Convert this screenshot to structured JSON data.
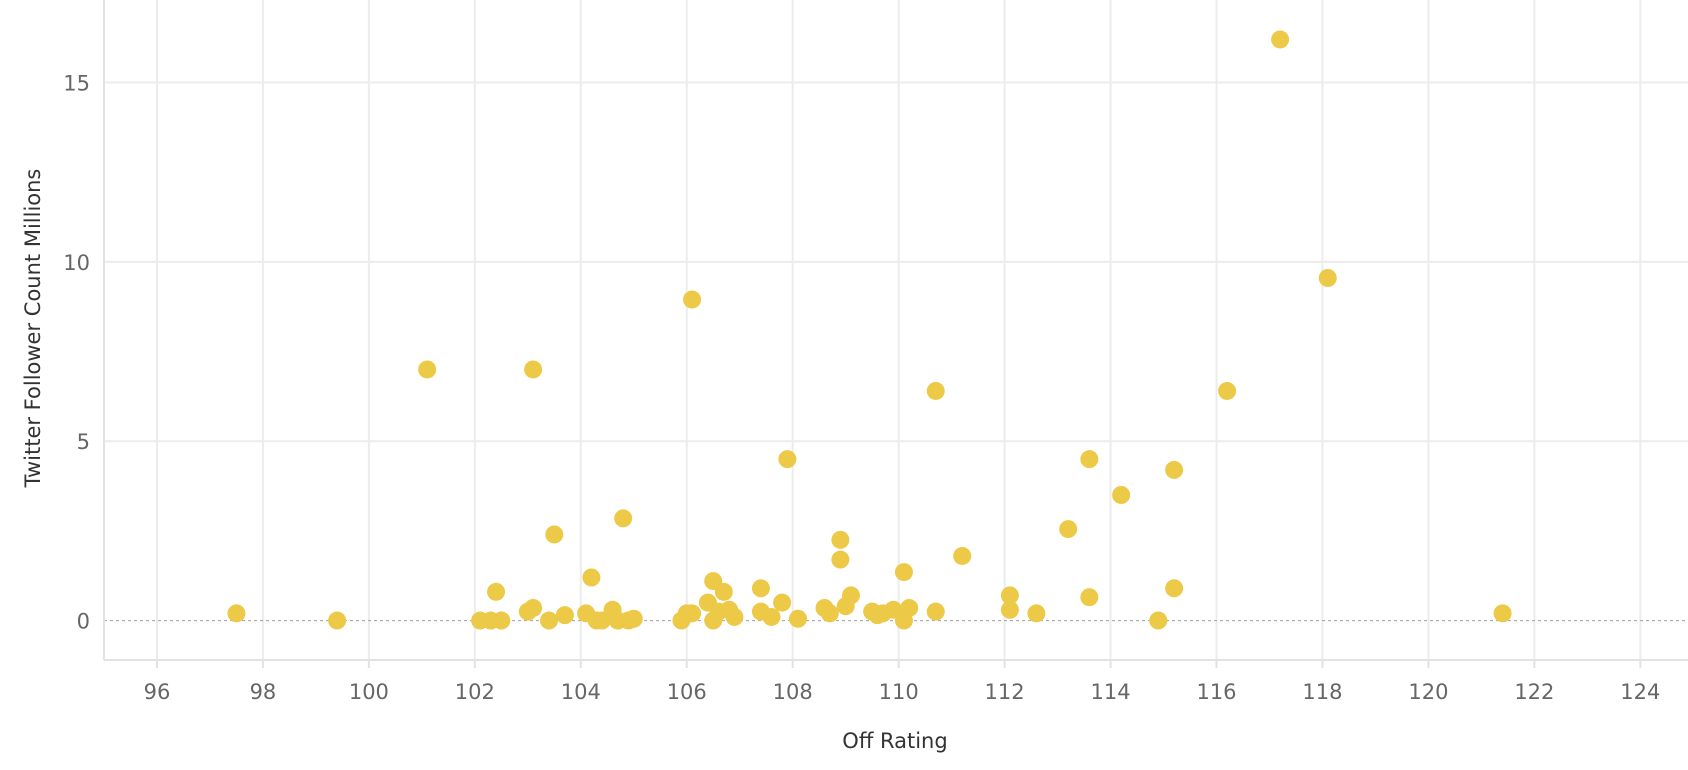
{
  "colors": {
    "point": "#edc948",
    "grid": "#ececec",
    "zero_line": "#aaaaaa",
    "tick_text": "#666666",
    "title_text": "#333333"
  },
  "chart_data": {
    "type": "scatter",
    "title": "",
    "xlabel": "Off Rating",
    "ylabel": "Twitter Follower Count Millions",
    "xlim": [
      95,
      124.9
    ],
    "ylim": [
      -1.1,
      17.3
    ],
    "x_ticks": [
      96,
      98,
      100,
      102,
      104,
      106,
      108,
      110,
      112,
      114,
      116,
      118,
      120,
      122,
      124
    ],
    "y_ticks": [
      0,
      5,
      10,
      15
    ],
    "grid": true,
    "zero_line_dashed": true,
    "points": [
      {
        "x": 97.5,
        "y": 0.2
      },
      {
        "x": 99.4,
        "y": 0.0
      },
      {
        "x": 101.1,
        "y": 7.0
      },
      {
        "x": 102.1,
        "y": 0.0
      },
      {
        "x": 102.3,
        "y": 0.0
      },
      {
        "x": 102.4,
        "y": 0.8
      },
      {
        "x": 102.5,
        "y": 0.0
      },
      {
        "x": 103.0,
        "y": 0.25
      },
      {
        "x": 103.1,
        "y": 0.35
      },
      {
        "x": 103.1,
        "y": 7.0
      },
      {
        "x": 103.4,
        "y": 0.0
      },
      {
        "x": 103.5,
        "y": 2.4
      },
      {
        "x": 103.7,
        "y": 0.15
      },
      {
        "x": 104.1,
        "y": 0.2
      },
      {
        "x": 104.2,
        "y": 1.2
      },
      {
        "x": 104.3,
        "y": 0.0
      },
      {
        "x": 104.4,
        "y": 0.0
      },
      {
        "x": 104.6,
        "y": 0.3
      },
      {
        "x": 104.7,
        "y": 0.0
      },
      {
        "x": 104.8,
        "y": 2.85
      },
      {
        "x": 104.9,
        "y": 0.0
      },
      {
        "x": 105.0,
        "y": 0.05
      },
      {
        "x": 105.9,
        "y": 0.0
      },
      {
        "x": 106.0,
        "y": 0.2
      },
      {
        "x": 106.1,
        "y": 8.95
      },
      {
        "x": 106.1,
        "y": 0.2
      },
      {
        "x": 106.4,
        "y": 0.5
      },
      {
        "x": 106.5,
        "y": 1.1
      },
      {
        "x": 106.5,
        "y": 0.0
      },
      {
        "x": 106.6,
        "y": 0.25
      },
      {
        "x": 106.7,
        "y": 0.8
      },
      {
        "x": 106.8,
        "y": 0.3
      },
      {
        "x": 106.9,
        "y": 0.1
      },
      {
        "x": 107.4,
        "y": 0.9
      },
      {
        "x": 107.4,
        "y": 0.25
      },
      {
        "x": 107.6,
        "y": 0.1
      },
      {
        "x": 107.8,
        "y": 0.5
      },
      {
        "x": 107.9,
        "y": 4.5
      },
      {
        "x": 108.1,
        "y": 0.05
      },
      {
        "x": 108.6,
        "y": 0.35
      },
      {
        "x": 108.7,
        "y": 0.2
      },
      {
        "x": 108.9,
        "y": 2.25
      },
      {
        "x": 108.9,
        "y": 1.7
      },
      {
        "x": 109.0,
        "y": 0.4
      },
      {
        "x": 109.1,
        "y": 0.7
      },
      {
        "x": 109.5,
        "y": 0.25
      },
      {
        "x": 109.6,
        "y": 0.15
      },
      {
        "x": 109.7,
        "y": 0.2
      },
      {
        "x": 109.9,
        "y": 0.3
      },
      {
        "x": 110.1,
        "y": 1.35
      },
      {
        "x": 110.1,
        "y": 0.0
      },
      {
        "x": 110.2,
        "y": 0.35
      },
      {
        "x": 110.7,
        "y": 6.4
      },
      {
        "x": 110.7,
        "y": 0.25
      },
      {
        "x": 111.2,
        "y": 1.8
      },
      {
        "x": 112.1,
        "y": 0.7
      },
      {
        "x": 112.1,
        "y": 0.3
      },
      {
        "x": 112.6,
        "y": 0.2
      },
      {
        "x": 113.2,
        "y": 2.55
      },
      {
        "x": 113.6,
        "y": 4.5
      },
      {
        "x": 113.6,
        "y": 0.65
      },
      {
        "x": 114.2,
        "y": 3.5
      },
      {
        "x": 114.9,
        "y": 0.0
      },
      {
        "x": 115.2,
        "y": 4.2
      },
      {
        "x": 115.2,
        "y": 0.9
      },
      {
        "x": 116.2,
        "y": 6.4
      },
      {
        "x": 117.2,
        "y": 16.2
      },
      {
        "x": 118.1,
        "y": 9.55
      },
      {
        "x": 121.4,
        "y": 0.2
      }
    ]
  }
}
